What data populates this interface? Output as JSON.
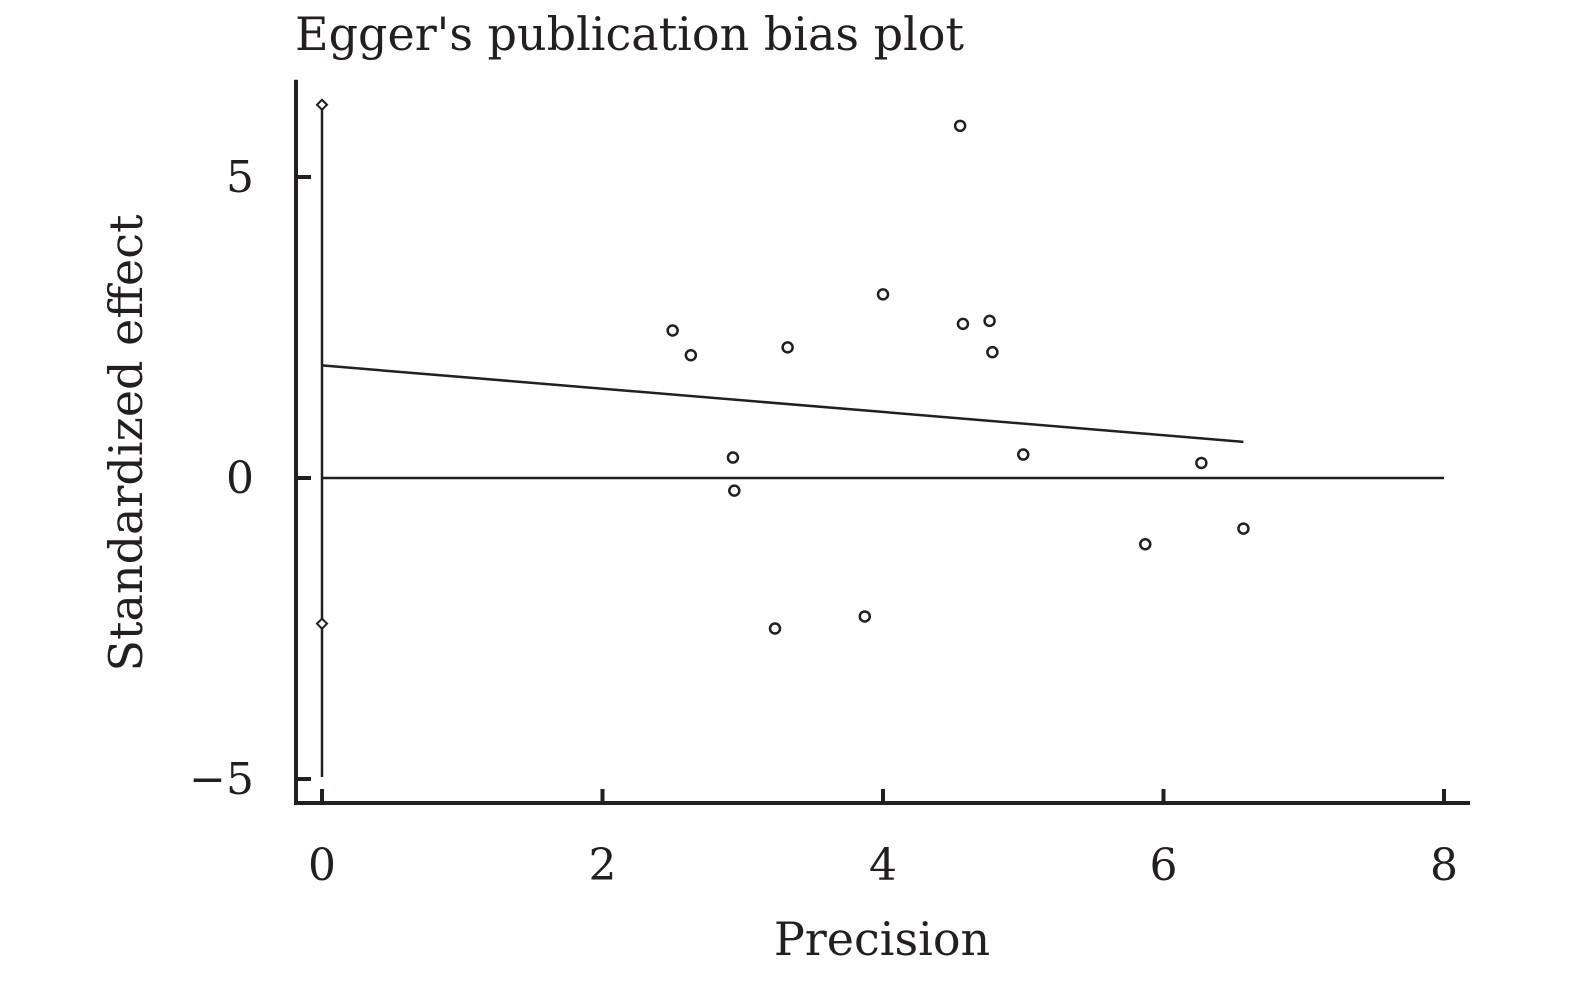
{
  "chart_data": {
    "type": "scatter",
    "title": "Egger's publication bias plot",
    "xlabel": "Precision",
    "ylabel": "Standardized effect",
    "xlim": [
      0,
      8
    ],
    "ylim": [
      -5,
      6.2
    ],
    "x_ticks": [
      0,
      2,
      4,
      6,
      8
    ],
    "x_tick_labels": [
      "0",
      "2",
      "4",
      "6",
      "8"
    ],
    "y_ticks": [
      -5,
      0,
      5
    ],
    "y_tick_labels": [
      "−5",
      "0",
      "5"
    ],
    "grid": false,
    "points": [
      {
        "x": 2.5,
        "y": 2.45
      },
      {
        "x": 2.63,
        "y": 2.04
      },
      {
        "x": 2.93,
        "y": 0.34
      },
      {
        "x": 2.94,
        "y": -0.21
      },
      {
        "x": 3.23,
        "y": -2.5
      },
      {
        "x": 3.32,
        "y": 2.17
      },
      {
        "x": 3.87,
        "y": -2.3
      },
      {
        "x": 4.0,
        "y": 3.05
      },
      {
        "x": 4.55,
        "y": 5.85
      },
      {
        "x": 4.57,
        "y": 2.56
      },
      {
        "x": 4.76,
        "y": 2.61
      },
      {
        "x": 4.78,
        "y": 2.09
      },
      {
        "x": 5.0,
        "y": 0.39
      },
      {
        "x": 5.87,
        "y": -1.1
      },
      {
        "x": 6.27,
        "y": 0.25
      },
      {
        "x": 6.57,
        "y": -0.84
      }
    ],
    "regression_line": {
      "x": [
        0,
        6.57
      ],
      "y": [
        1.87,
        0.6
      ]
    },
    "reference_line_y": 0,
    "intercept_ci": {
      "x": 0,
      "lower": -2.42,
      "upper": 6.2
    }
  }
}
